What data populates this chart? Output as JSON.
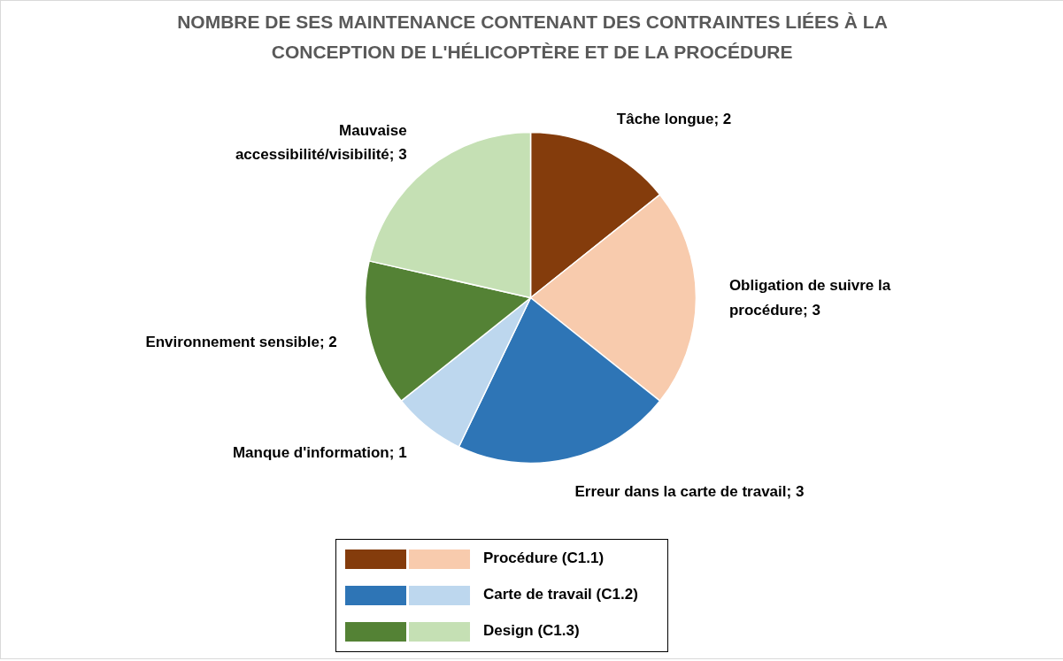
{
  "chart_data": {
    "type": "pie",
    "title": "NOMBRE DE SES MAINTENANCE CONTENANT DES CONTRAINTES LIÉES À LA CONCEPTION DE L'HÉLICOPTÈRE ET DE LA PROCÉDURE",
    "categories": [
      "Tâche longue; 2",
      "Obligation de suivre la procédure; 3",
      "Erreur dans la carte de travail; 3",
      "Manque d'information; 1",
      "Environnement sensible; 2",
      "Mauvaise accessibilité/visibilité; 3"
    ],
    "values": [
      2,
      3,
      3,
      1,
      2,
      3
    ],
    "colors": [
      "#843c0c",
      "#f8cbad",
      "#2e75b6",
      "#bdd7ee",
      "#548235",
      "#c5e0b4"
    ],
    "annotations": [
      "Procédure (C1.1)",
      "Carte de travail (C1.2)",
      "Design (C1.3)"
    ]
  }
}
